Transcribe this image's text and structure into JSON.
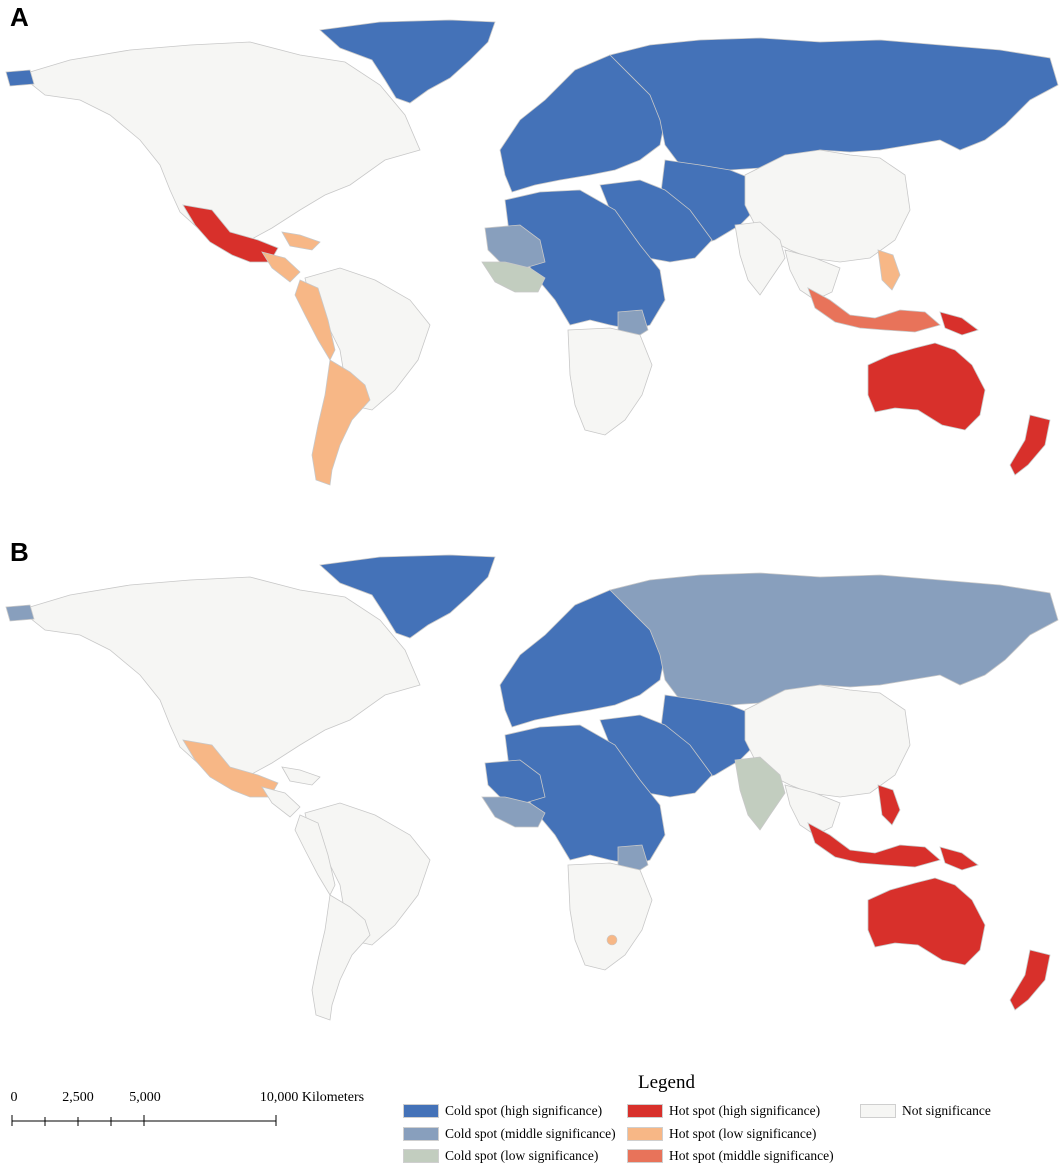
{
  "panels": [
    {
      "label": "A"
    },
    {
      "label": "B"
    }
  ],
  "colors": {
    "cold_high": "#4472b8",
    "cold_middle": "#889fbd",
    "cold_low": "#c2cdbf",
    "hot_high": "#d8302b",
    "hot_low": "#f7b786",
    "hot_middle": "#e8735a",
    "not_sig": "#f6f6f4",
    "border": "#c8c8c8"
  },
  "scalebar": {
    "ticks": [
      "0",
      "2,500",
      "5,000",
      "10,000 Kilometers"
    ]
  },
  "legend": {
    "title": "Legend",
    "items": [
      {
        "label": "Cold spot (high significance)",
        "color_key": "cold_high"
      },
      {
        "label": "Cold spot (middle significance)",
        "color_key": "cold_middle"
      },
      {
        "label": "Cold spot (low significance)",
        "color_key": "cold_low"
      },
      {
        "label": "Hot spot (high significance)",
        "color_key": "hot_high"
      },
      {
        "label": "Hot spot (low significance)",
        "color_key": "hot_low"
      },
      {
        "label": "Hot spot (middle significance)",
        "color_key": "hot_middle"
      },
      {
        "label": "Not significance",
        "color_key": "not_sig"
      }
    ]
  },
  "map_a": {
    "greenland": "cold_high",
    "alaska_tip": "cold_high",
    "north_america": "not_sig",
    "mexico": "hot_high",
    "central_america": "hot_low",
    "caribbean": "hot_low",
    "andes_west": "hot_low",
    "argentina": "hot_low",
    "south_america_east": "not_sig",
    "europe": "cold_high",
    "russia": "cold_high",
    "central_asia": "cold_high",
    "middle_east": "cold_high",
    "north_africa": "cold_high",
    "west_africa_sahel": "cold_middle",
    "west_africa_coast": "cold_low",
    "east_africa_spot": "cold_middle",
    "southern_africa": "not_sig",
    "china_east_asia": "not_sig",
    "india_se_asia": "not_sig",
    "philippines": "hot_low",
    "indonesia": "hot_middle",
    "png": "hot_high",
    "australia": "hot_high",
    "new_zealand": "hot_high"
  },
  "map_b": {
    "greenland": "cold_high",
    "alaska_tip": "cold_middle",
    "north_america": "not_sig",
    "mexico": "hot_low",
    "central_america": "not_sig",
    "caribbean": "not_sig",
    "andes_west": "not_sig",
    "argentina": "not_sig",
    "south_america_east": "not_sig",
    "europe": "cold_high",
    "russia": "cold_middle",
    "central_asia": "cold_high",
    "middle_east": "cold_high",
    "north_africa": "cold_high",
    "west_africa_sahel": "cold_high",
    "west_africa_coast": "cold_middle",
    "east_africa_spot": "cold_middle",
    "southern_africa": "not_sig",
    "south_africa_spot": "hot_low",
    "china_east_asia": "not_sig",
    "india": "cold_low",
    "india_se_asia": "not_sig",
    "philippines": "hot_high",
    "indonesia": "hot_high",
    "png": "hot_high",
    "australia": "hot_high",
    "new_zealand": "hot_high"
  }
}
